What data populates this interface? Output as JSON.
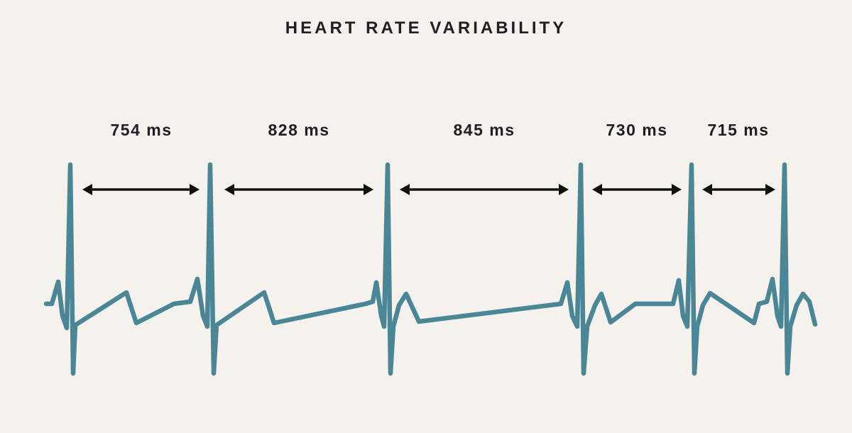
{
  "title": "HEART RATE VARIABILITY",
  "colors": {
    "background": "#f5f2ee",
    "trace": "#4a8696",
    "arrow": "#111111",
    "text": "#1f1f1f"
  },
  "intervals": [
    {
      "label": "754 ms",
      "value_ms": 754
    },
    {
      "label": "828 ms",
      "value_ms": 828
    },
    {
      "label": "845 ms",
      "value_ms": 845
    },
    {
      "label": "730 ms",
      "value_ms": 730
    },
    {
      "label": "715 ms",
      "value_ms": 715
    }
  ]
}
